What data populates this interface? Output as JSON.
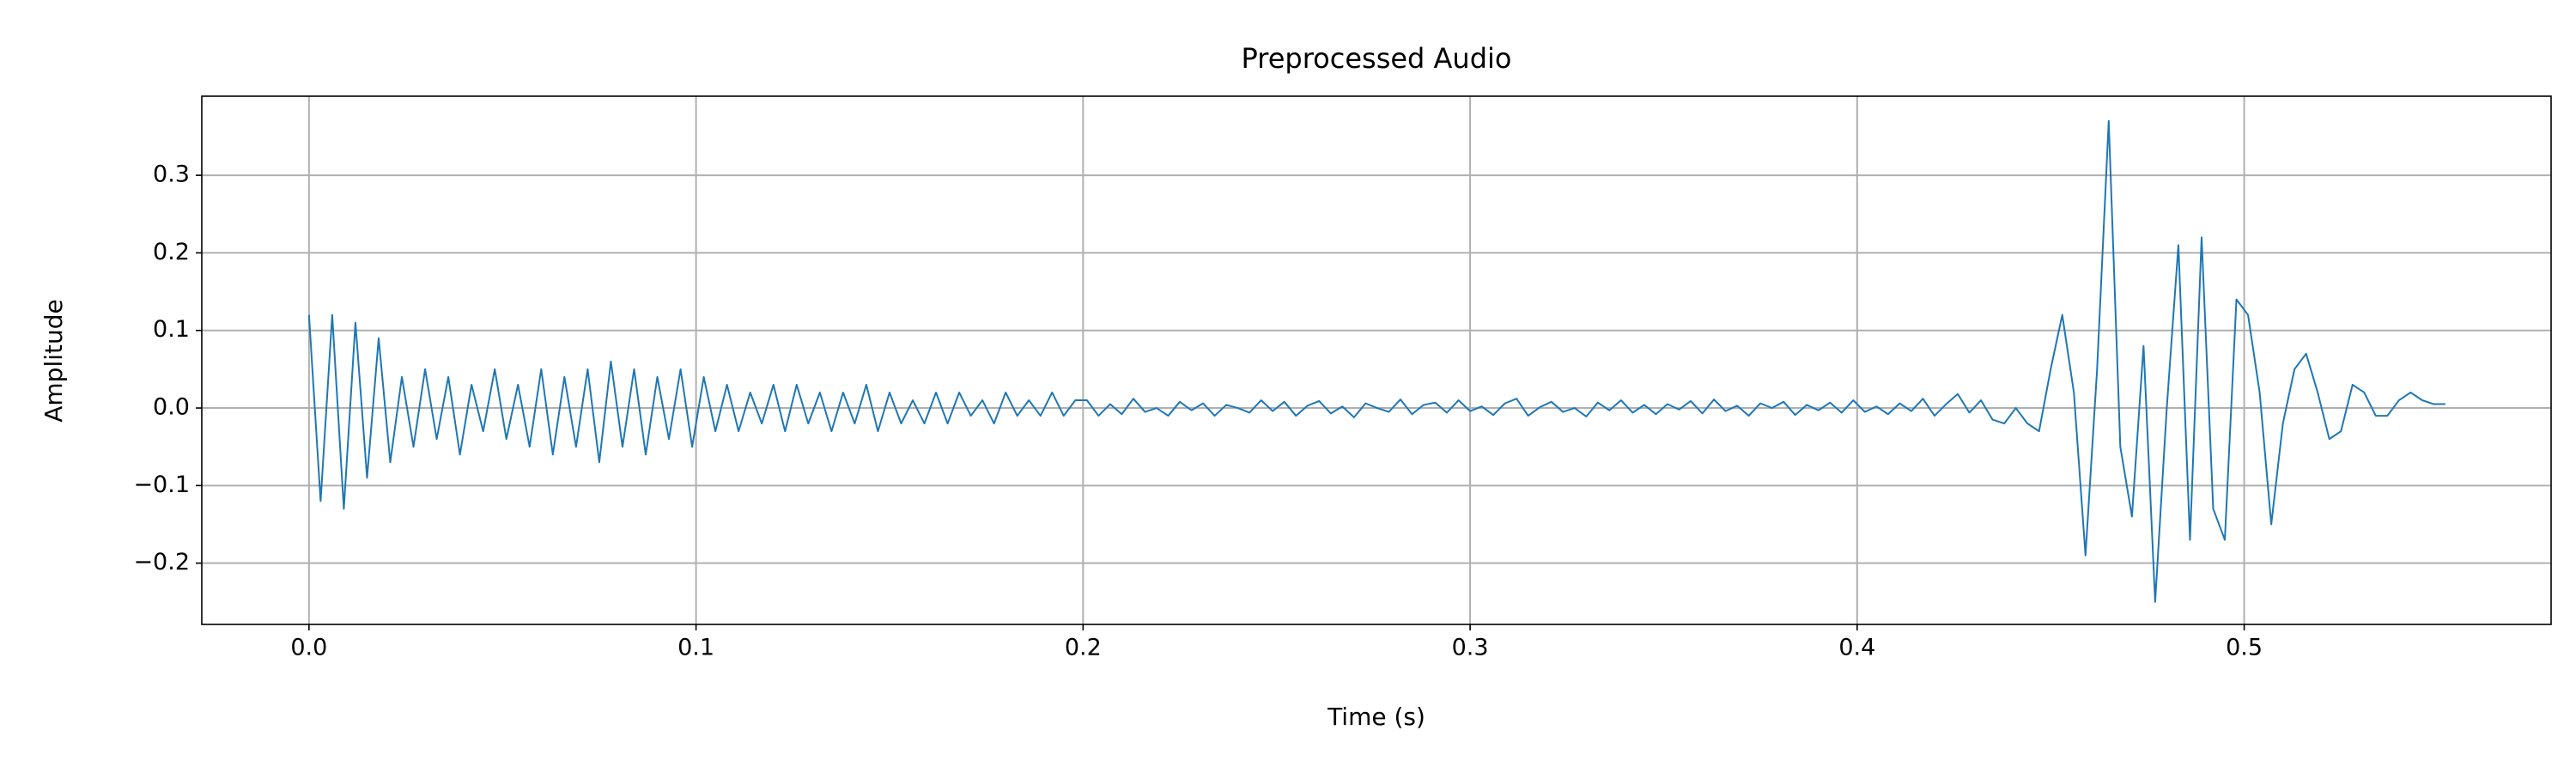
{
  "chart_data": {
    "type": "line",
    "title": "Preprocessed Audio",
    "x_label": "Time (s)",
    "y_label": "Amplitude",
    "color": "#1f77b4",
    "grid": true,
    "xlim": [
      -0.0277,
      0.5793
    ],
    "ylim": [
      -0.279,
      0.402
    ],
    "xticks": [
      {
        "value": 0,
        "label": "0.0"
      },
      {
        "value": 0.1,
        "label": "0.1"
      },
      {
        "value": 0.2,
        "label": "0.2"
      },
      {
        "value": 0.3,
        "label": "0.3"
      },
      {
        "value": 0.4,
        "label": "0.4"
      },
      {
        "value": 0.5,
        "label": "0.5"
      }
    ],
    "yticks": [
      {
        "value": -0.2,
        "label": "−0.2"
      },
      {
        "value": -0.1,
        "label": "−0.1"
      },
      {
        "value": 0,
        "label": "0.0"
      },
      {
        "value": 0.1,
        "label": "0.1"
      },
      {
        "value": 0.2,
        "label": "0.2"
      },
      {
        "value": 0.3,
        "label": "0.3"
      }
    ],
    "x": [
      0,
      0.003,
      0.006,
      0.009,
      0.012,
      0.015,
      0.018,
      0.021,
      0.024,
      0.027,
      0.03,
      0.033,
      0.036,
      0.039,
      0.042,
      0.045,
      0.048,
      0.051,
      0.054,
      0.057,
      0.06,
      0.063,
      0.066,
      0.069,
      0.072,
      0.075,
      0.078,
      0.081,
      0.084,
      0.087,
      0.09,
      0.093,
      0.096,
      0.099,
      0.102,
      0.105,
      0.108,
      0.111,
      0.114,
      0.117,
      0.12,
      0.123,
      0.126,
      0.129,
      0.132,
      0.135,
      0.138,
      0.141,
      0.144,
      0.147,
      0.15,
      0.153,
      0.156,
      0.159,
      0.162,
      0.165,
      0.168,
      0.171,
      0.174,
      0.177,
      0.18,
      0.183,
      0.186,
      0.189,
      0.192,
      0.195,
      0.198,
      0.201,
      0.204,
      0.207,
      0.21,
      0.213,
      0.216,
      0.219,
      0.222,
      0.225,
      0.228,
      0.231,
      0.234,
      0.237,
      0.24,
      0.243,
      0.246,
      0.249,
      0.252,
      0.255,
      0.258,
      0.261,
      0.264,
      0.267,
      0.27,
      0.273,
      0.276,
      0.279,
      0.282,
      0.285,
      0.288,
      0.291,
      0.294,
      0.297,
      0.3,
      0.303,
      0.306,
      0.309,
      0.312,
      0.315,
      0.318,
      0.321,
      0.324,
      0.327,
      0.33,
      0.333,
      0.336,
      0.339,
      0.342,
      0.345,
      0.348,
      0.351,
      0.354,
      0.357,
      0.36,
      0.363,
      0.366,
      0.369,
      0.372,
      0.375,
      0.378,
      0.381,
      0.384,
      0.387,
      0.39,
      0.393,
      0.396,
      0.399,
      0.402,
      0.405,
      0.408,
      0.411,
      0.414,
      0.417,
      0.42,
      0.423,
      0.426,
      0.429,
      0.432,
      0.435,
      0.438,
      0.441,
      0.444,
      0.447,
      0.45,
      0.453,
      0.456,
      0.459,
      0.462,
      0.465,
      0.468,
      0.471,
      0.474,
      0.477,
      0.48,
      0.483,
      0.486,
      0.489,
      0.492,
      0.495,
      0.498,
      0.501,
      0.504,
      0.507,
      0.51,
      0.513,
      0.516,
      0.519,
      0.522,
      0.525,
      0.528,
      0.531,
      0.534,
      0.537,
      0.54,
      0.543,
      0.546,
      0.549,
      0.552
    ],
    "values": [
      0.12,
      -0.12,
      0.12,
      -0.13,
      0.11,
      -0.09,
      0.09,
      -0.07,
      0.04,
      -0.05,
      0.05,
      -0.04,
      0.04,
      -0.06,
      0.03,
      -0.03,
      0.05,
      -0.04,
      0.03,
      -0.05,
      0.05,
      -0.06,
      0.04,
      -0.05,
      0.05,
      -0.07,
      0.06,
      -0.05,
      0.05,
      -0.06,
      0.04,
      -0.04,
      0.05,
      -0.05,
      0.04,
      -0.03,
      0.03,
      -0.03,
      0.02,
      -0.02,
      0.03,
      -0.03,
      0.03,
      -0.02,
      0.02,
      -0.03,
      0.02,
      -0.02,
      0.03,
      -0.03,
      0.02,
      -0.02,
      0.01,
      -0.02,
      0.02,
      -0.02,
      0.02,
      -0.01,
      0.01,
      -0.02,
      0.02,
      -0.01,
      0.01,
      -0.01,
      0.02,
      -0.01,
      0.01,
      0.01,
      -0.01,
      0.005,
      -0.008,
      0.012,
      -0.005,
      0.0,
      -0.01,
      0.008,
      -0.003,
      0.006,
      -0.01,
      0.004,
      0.0,
      -0.006,
      0.01,
      -0.004,
      0.008,
      -0.01,
      0.003,
      0.009,
      -0.007,
      0.002,
      -0.012,
      0.006,
      0.0,
      -0.005,
      0.011,
      -0.008,
      0.004,
      0.007,
      -0.006,
      0.01,
      -0.004,
      0.002,
      -0.009,
      0.006,
      0.012,
      -0.01,
      0.001,
      0.008,
      -0.005,
      0.0,
      -0.011,
      0.007,
      -0.003,
      0.01,
      -0.006,
      0.004,
      -0.008,
      0.005,
      -0.002,
      0.009,
      -0.007,
      0.011,
      -0.004,
      0.003,
      -0.01,
      0.006,
      0.0,
      0.008,
      -0.009,
      0.004,
      -0.003,
      0.007,
      -0.006,
      0.01,
      -0.005,
      0.002,
      -0.008,
      0.006,
      -0.004,
      0.012,
      -0.01,
      0.005,
      0.018,
      -0.006,
      0.01,
      -0.015,
      -0.02,
      0.0,
      -0.02,
      -0.03,
      0.05,
      0.12,
      0.02,
      -0.19,
      0.05,
      0.37,
      -0.05,
      -0.14,
      0.08,
      -0.25,
      0.0,
      0.21,
      -0.17,
      0.22,
      -0.13,
      -0.17,
      0.14,
      0.12,
      0.02,
      -0.15,
      -0.02,
      0.05,
      0.07,
      0.02,
      -0.04,
      -0.03,
      0.03,
      0.02,
      -0.01,
      -0.01,
      0.01,
      0.02,
      0.01,
      0.005,
      0.005
    ]
  }
}
